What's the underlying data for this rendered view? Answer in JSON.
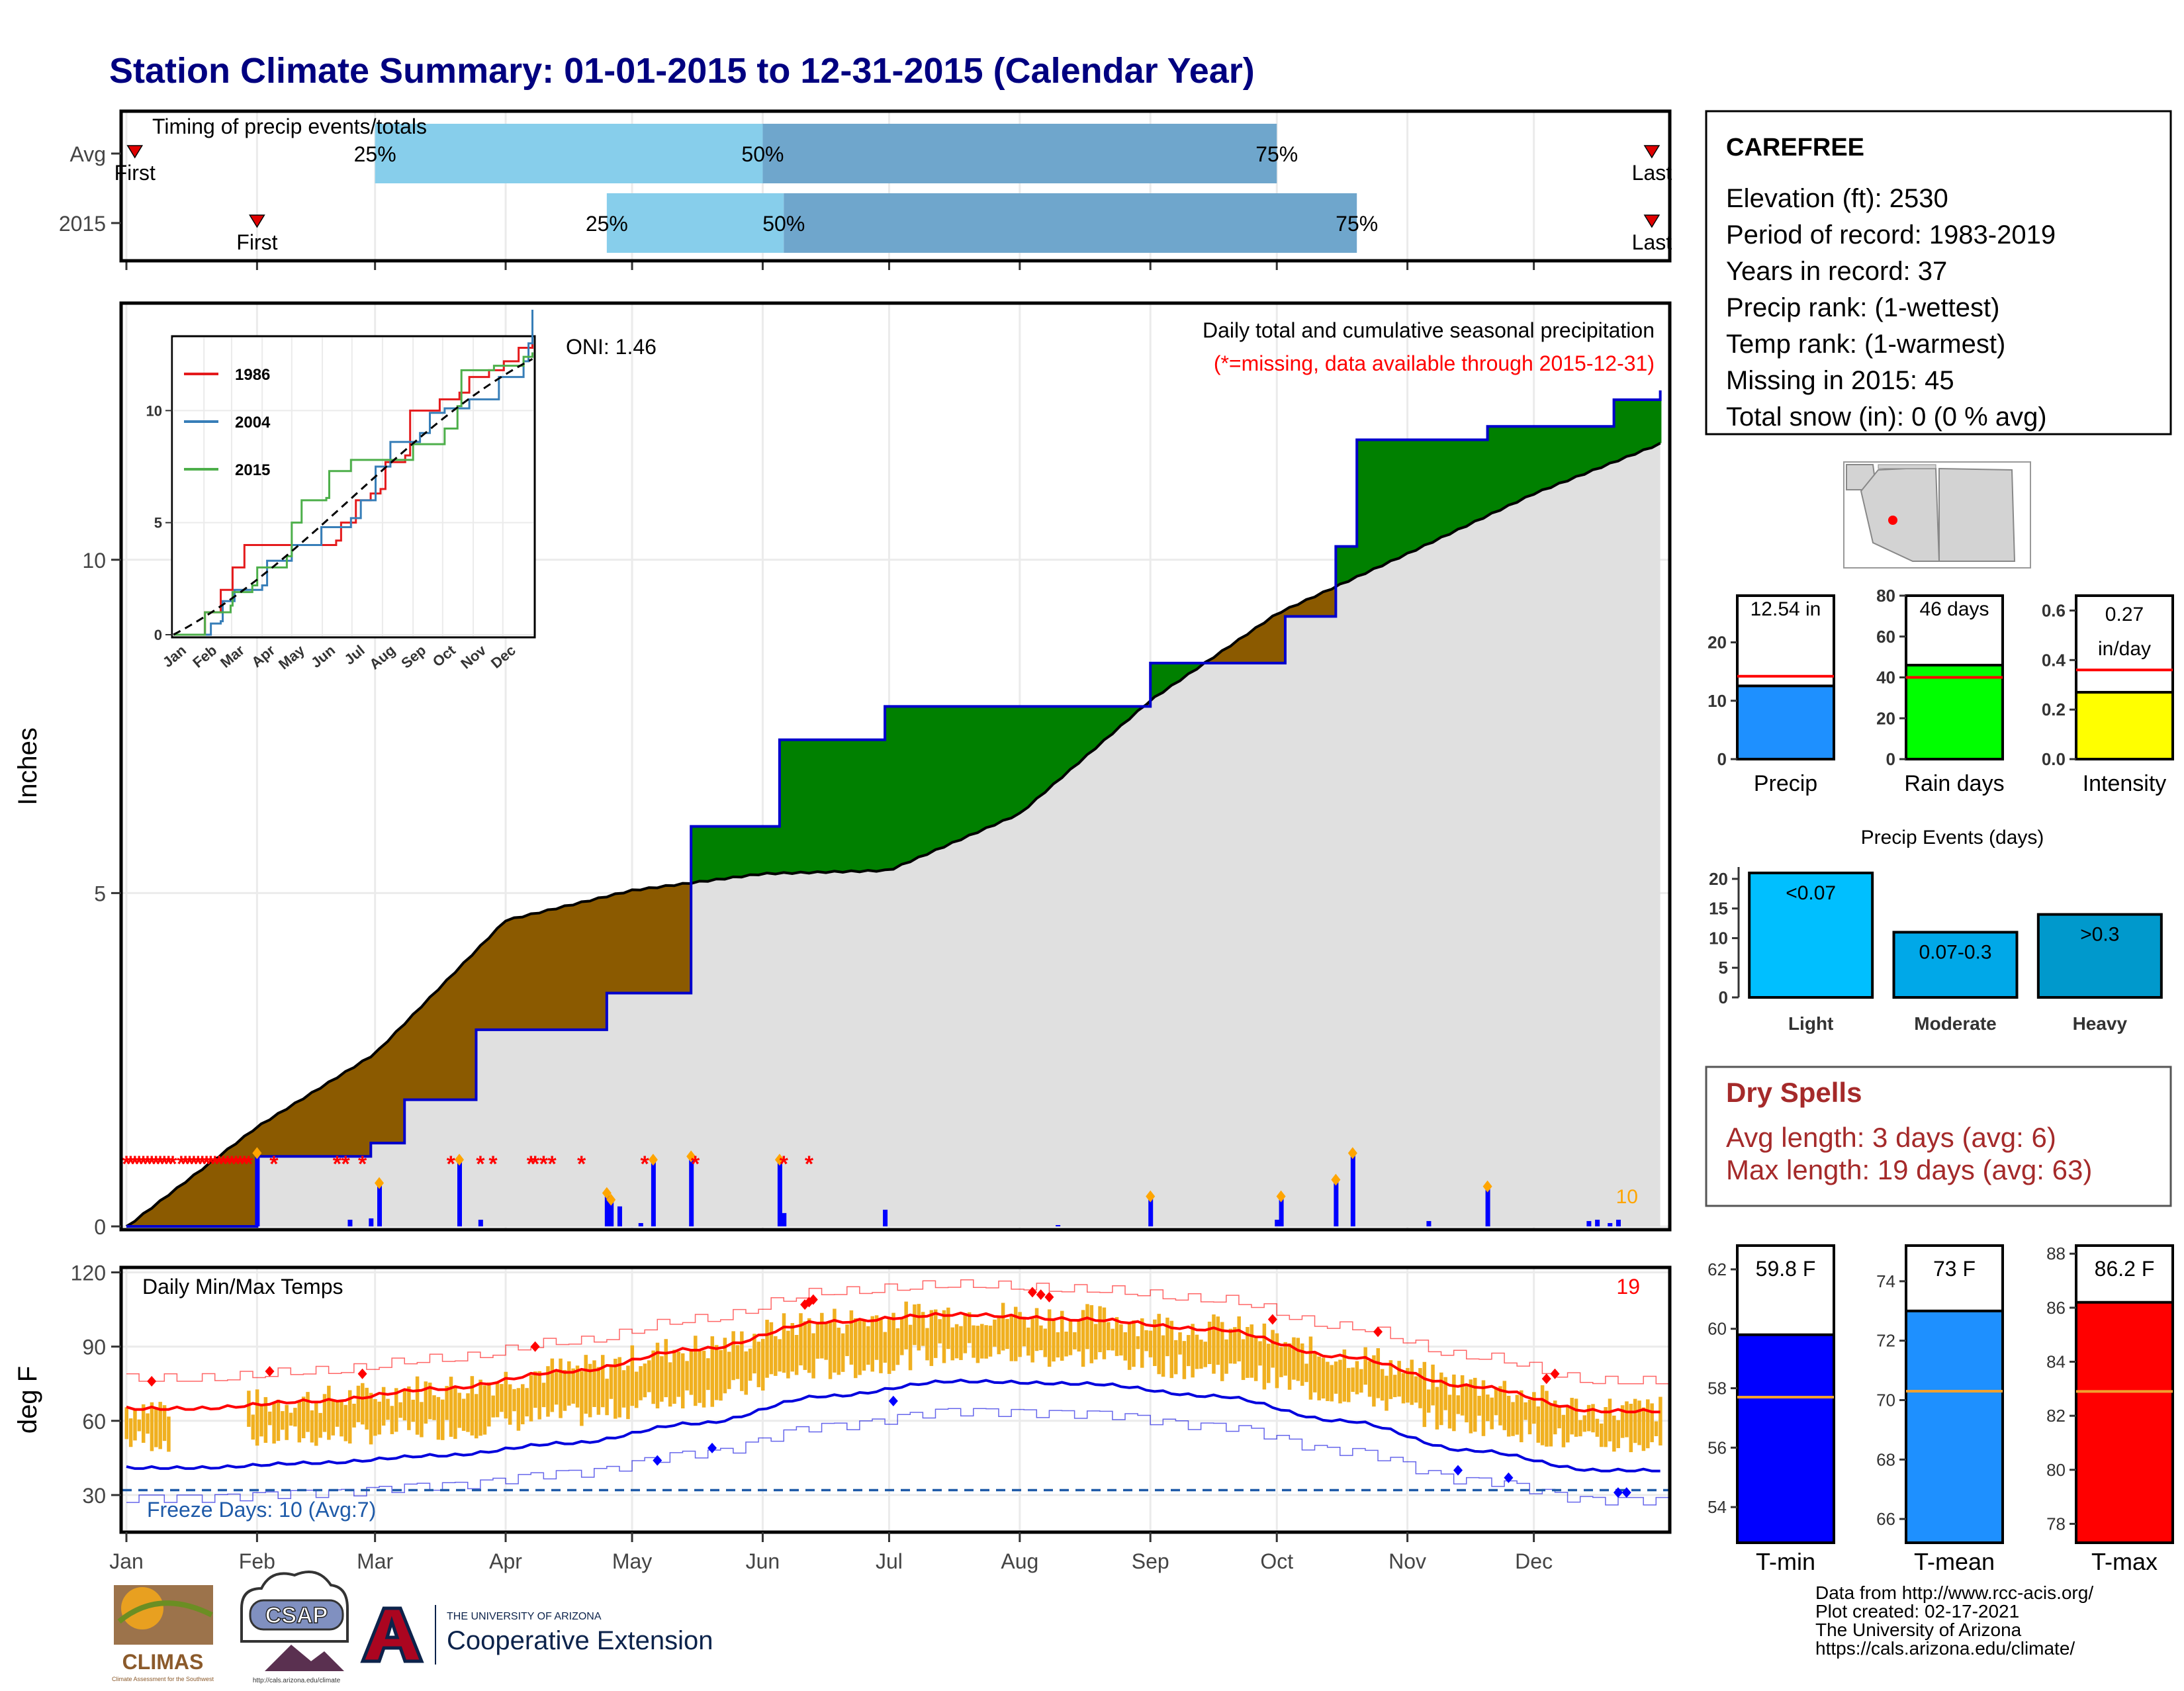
{
  "title": "Station Climate Summary: 01-01-2015 to 12-31-2015 (Calendar Year)",
  "timing": {
    "title": "Timing of precip events/totals",
    "rows": [
      {
        "label": "Avg",
        "first": "Jan 3",
        "p25": "Mar 1",
        "p50": "Jun 1",
        "p75": "Oct 1",
        "last": "Dec 29",
        "marks": {
          "first": "First",
          "p25": "25%",
          "p50": "50%",
          "p75": "75%",
          "last": "Last"
        }
      },
      {
        "label": "2015",
        "first": "Feb 1",
        "p25": "Apr 25",
        "p50": "Jun 6",
        "p75": "Oct 20",
        "last": "Dec 29",
        "marks": {
          "first": "First",
          "p25": "25%",
          "p50": "50%",
          "p75": "75%",
          "last": "Last"
        }
      }
    ],
    "colors": {
      "light": "#87CEEB",
      "dark": "#6FA6CC",
      "marker": "#E00000"
    }
  },
  "station": {
    "name": "CAREFREE",
    "lines": [
      "Elevation (ft): 2530",
      "Period of record: 1983-2019",
      "Years in record: 37",
      "Precip rank:  (1-wettest)",
      "Temp rank:  (1-warmest)",
      "Missing in 2015: 45",
      "Total snow (in): 0 (0 % avg)"
    ]
  },
  "precip_panel": {
    "ylabel": "Inches",
    "yticks": [
      "0",
      "5",
      "10"
    ],
    "oni": "ONI: 1.46",
    "note1": "Daily total and cumulative seasonal precipitation",
    "note2": "(*=missing, data available through 2015-12-31)",
    "count_label": "10",
    "colors": {
      "above": "#008000",
      "below": "#8B5A00",
      "avg_fill": "#E0E0E0",
      "line": "#0000CC",
      "missing": "#FF0000",
      "flag": "#FFA500"
    }
  },
  "inset": {
    "yticks": [
      "0",
      "5",
      "10"
    ],
    "months": [
      "Jan",
      "Feb",
      "Mar",
      "Apr",
      "May",
      "Jun",
      "Jul",
      "Aug",
      "Sep",
      "Oct",
      "Nov",
      "Dec"
    ],
    "legend": [
      {
        "name": "1986",
        "color": "#E41A1C"
      },
      {
        "name": "2004",
        "color": "#377EB8"
      },
      {
        "name": "2015",
        "color": "#4DAF4A"
      }
    ]
  },
  "temp_panel": {
    "title": "Daily Min/Max Temps",
    "ylabel": "deg F",
    "yticks": [
      "30",
      "60",
      "90",
      "120"
    ],
    "freeze": "Freeze Days: 10 (Avg:7)",
    "count_label": "19",
    "months": [
      "Jan",
      "Feb",
      "Mar",
      "Apr",
      "May",
      "Jun",
      "Jul",
      "Aug",
      "Sep",
      "Oct",
      "Nov",
      "Dec"
    ],
    "colors": {
      "bar": "#F0B020",
      "max_line": "#FF0000",
      "min_line": "#0000DD"
    }
  },
  "mini_bars": [
    {
      "label": "Precip",
      "value_text": "12.54 in",
      "value": 12.54,
      "avg": 14.2,
      "ymax": 28,
      "yticks": [
        "0",
        "10",
        "20"
      ],
      "color": "#1E90FF"
    },
    {
      "label": "Rain days",
      "value_text": "46 days",
      "value": 46,
      "avg": 40,
      "ymax": 80,
      "yticks": [
        "0",
        "20",
        "40",
        "60",
        "80"
      ],
      "color": "#00FF00"
    },
    {
      "label": "Intensity",
      "value_text_line1": "0.27",
      "value_text_line2": "in/day",
      "value": 0.27,
      "avg": 0.36,
      "ymax": 0.66,
      "yticks": [
        "0.0",
        "0.2",
        "0.4",
        "0.6"
      ],
      "color": "#FFFF00"
    }
  ],
  "events": {
    "title": "Precip Events (days)",
    "yticks": [
      "0",
      "5",
      "10",
      "15",
      "20"
    ],
    "bars": [
      {
        "category": "Light",
        "label": "<0.07",
        "value": 21,
        "color": "#00BFFF"
      },
      {
        "category": "Moderate",
        "label": "0.07-0.3",
        "value": 11,
        "color": "#00A8E8"
      },
      {
        "category": "Heavy",
        "label": ">0.3",
        "value": 14,
        "color": "#0099CC"
      }
    ]
  },
  "dry_spells": {
    "title": "Dry Spells",
    "avg": "Avg length: 3 days (avg: 6)",
    "max": "Max length: 19 days (avg: 63)",
    "color": "#A52A2A"
  },
  "temp_bars": [
    {
      "label": "T-min",
      "value_text": "59.8 F",
      "value": 59.8,
      "avg": 57.7,
      "ymin": 52.8,
      "ymax": 62.8,
      "yticks": [
        "54",
        "56",
        "58",
        "60",
        "62"
      ],
      "color": "#0000FF"
    },
    {
      "label": "T-mean",
      "value_text": "73 F",
      "value": 73.0,
      "avg": 70.3,
      "ymin": 65.2,
      "ymax": 75.2,
      "yticks": [
        "66",
        "68",
        "70",
        "72",
        "74"
      ],
      "color": "#1E90FF"
    },
    {
      "label": "T-max",
      "value_text": "86.2 F",
      "value": 86.2,
      "avg": 82.9,
      "ymin": 77.3,
      "ymax": 88.3,
      "yticks": [
        "78",
        "80",
        "82",
        "84",
        "86",
        "88"
      ],
      "color": "#FF0000"
    }
  ],
  "footer": {
    "lines": [
      "Data from http://www.rcc-acis.org/",
      "Plot created: 02-17-2021",
      "The University of Arizona",
      "https://cals.arizona.edu/climate/"
    ],
    "logos": {
      "climas": "CLIMAS",
      "climas_sub": "Climate Assessment for the Southwest",
      "csap": "CSAP",
      "csap_url": "http://cals.arizona.edu/climate",
      "ua_small": "THE UNIVERSITY OF ARIZONA",
      "ua_big": "Cooperative Extension"
    }
  },
  "chart_data": [
    {
      "type": "area",
      "title": "Daily total and cumulative seasonal precipitation",
      "ylabel": "Inches",
      "ylim": [
        0,
        13.8
      ],
      "x_categories": [
        "Jan",
        "Feb",
        "Mar",
        "Apr",
        "May",
        "Jun",
        "Jul",
        "Aug",
        "Sep",
        "Oct",
        "Nov",
        "Dec"
      ],
      "series": [
        {
          "name": "2015 cumulative",
          "x": [
            "2015-01-01",
            "2015-02-01",
            "2015-02-28",
            "2015-03-08",
            "2015-03-25",
            "2015-04-25",
            "2015-05-15",
            "2015-06-05",
            "2015-06-30",
            "2015-08-15",
            "2015-09-01",
            "2015-10-03",
            "2015-10-15",
            "2015-10-20",
            "2015-11-20",
            "2015-12-20",
            "2015-12-31"
          ],
          "values": [
            0,
            1.05,
            1.25,
            1.9,
            2.95,
            3.5,
            6.0,
            7.3,
            7.8,
            7.8,
            8.45,
            9.15,
            10.2,
            11.8,
            12.0,
            12.4,
            12.54
          ]
        },
        {
          "name": "Average cumulative",
          "x": [
            "2015-01-01",
            "2015-02-01",
            "2015-03-01",
            "2015-04-01",
            "2015-05-01",
            "2015-06-01",
            "2015-07-01",
            "2015-08-01",
            "2015-09-01",
            "2015-10-01",
            "2015-11-01",
            "2015-12-01",
            "2015-12-31"
          ],
          "values": [
            0,
            1.5,
            2.6,
            4.6,
            5.05,
            5.3,
            5.35,
            6.2,
            7.9,
            9.2,
            10.1,
            11.0,
            11.75
          ]
        }
      ],
      "daily_bars": [
        {
          "x": "2015-02-01",
          "value": 1.1
        },
        {
          "x": "2015-02-23",
          "value": 0.1
        },
        {
          "x": "2015-02-28",
          "value": 0.12
        },
        {
          "x": "2015-03-02",
          "value": 0.65
        },
        {
          "x": "2015-03-21",
          "value": 1.0
        },
        {
          "x": "2015-03-26",
          "value": 0.1
        },
        {
          "x": "2015-04-25",
          "value": 0.5
        },
        {
          "x": "2015-04-26",
          "value": 0.4
        },
        {
          "x": "2015-04-28",
          "value": 0.3
        },
        {
          "x": "2015-05-03",
          "value": 0.05
        },
        {
          "x": "2015-05-06",
          "value": 1.0
        },
        {
          "x": "2015-05-15",
          "value": 1.05
        },
        {
          "x": "2015-06-05",
          "value": 1.0
        },
        {
          "x": "2015-06-06",
          "value": 0.2
        },
        {
          "x": "2015-06-30",
          "value": 0.25
        },
        {
          "x": "2015-08-10",
          "value": 0.02
        },
        {
          "x": "2015-09-01",
          "value": 0.45
        },
        {
          "x": "2015-10-01",
          "value": 0.1
        },
        {
          "x": "2015-10-02",
          "value": 0.45
        },
        {
          "x": "2015-10-15",
          "value": 0.7
        },
        {
          "x": "2015-10-19",
          "value": 1.1
        },
        {
          "x": "2015-11-06",
          "value": 0.08
        },
        {
          "x": "2015-11-20",
          "value": 0.6
        },
        {
          "x": "2015-12-14",
          "value": 0.08
        },
        {
          "x": "2015-12-16",
          "value": 0.1
        },
        {
          "x": "2015-12-19",
          "value": 0.05
        },
        {
          "x": "2015-12-21",
          "value": 0.1
        }
      ],
      "missing_days": 45,
      "annotation": "ONI: 1.46"
    },
    {
      "type": "line",
      "title": "Daily Min/Max Temps",
      "ylabel": "deg F",
      "ylim": [
        15,
        122
      ],
      "x_categories": [
        "Jan",
        "Feb",
        "Mar",
        "Apr",
        "May",
        "Jun",
        "Jul",
        "Aug",
        "Sep",
        "Oct",
        "Nov",
        "Dec"
      ],
      "series": [
        {
          "name": "Avg max",
          "x_month_mid": [
            1,
            2,
            3,
            4,
            5,
            6,
            7,
            8,
            9,
            10,
            11,
            12
          ],
          "values": [
            65,
            68,
            73,
            80,
            89,
            100,
            103,
            101,
            97,
            86,
            74,
            64
          ]
        },
        {
          "name": "Avg min",
          "x_month_mid": [
            1,
            2,
            3,
            4,
            5,
            6,
            7,
            8,
            9,
            10,
            11,
            12
          ],
          "values": [
            41,
            43,
            46,
            51,
            59,
            70,
            76,
            75,
            70,
            60,
            48,
            40
          ]
        }
      ],
      "freeze_line": 32,
      "annotation": "Freeze Days: 10 (Avg:7)"
    }
  ]
}
